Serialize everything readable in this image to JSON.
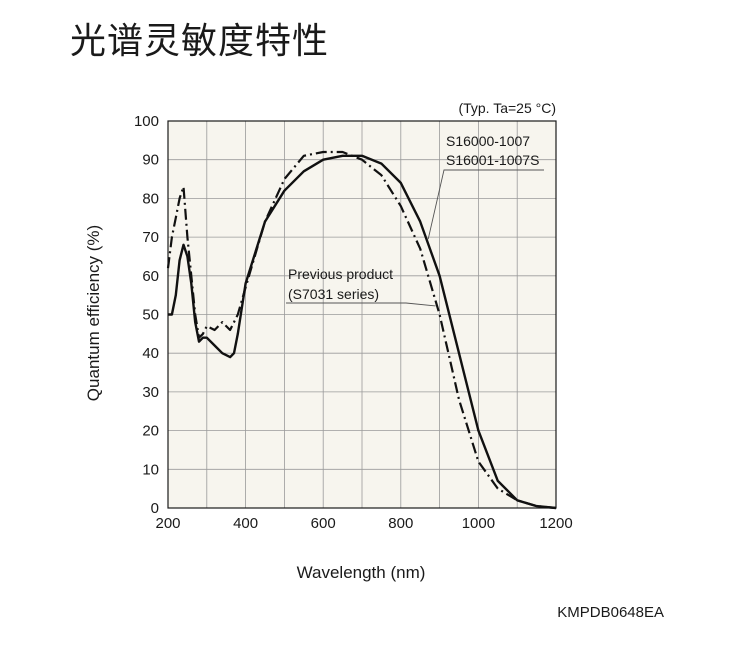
{
  "page_title": "光谱灵敏度特性",
  "doc_code": "KMPDB0648EA",
  "chart_data": {
    "type": "line",
    "title": "",
    "condition_note": "(Typ. Ta=25 °C)",
    "xlabel": "Wavelength (nm)",
    "ylabel": "Quantum efficiency (%)",
    "xlim": [
      200,
      1200
    ],
    "ylim": [
      0,
      100
    ],
    "xticks": [
      200,
      400,
      600,
      800,
      1000,
      1200
    ],
    "yticks": [
      0,
      10,
      20,
      30,
      40,
      50,
      60,
      70,
      80,
      90,
      100
    ],
    "grid": true,
    "plot_background": "#f7f5ee",
    "series": [
      {
        "name": "S16000-1007\nS16001-1007S",
        "style": "solid",
        "x": [
          200,
          210,
          220,
          230,
          240,
          250,
          260,
          270,
          280,
          290,
          300,
          320,
          340,
          360,
          370,
          380,
          400,
          450,
          500,
          550,
          600,
          650,
          700,
          750,
          800,
          850,
          900,
          950,
          1000,
          1050,
          1100,
          1150,
          1200
        ],
        "y": [
          50,
          50,
          55,
          64,
          68,
          65,
          58,
          48,
          43,
          44,
          44,
          42,
          40,
          39,
          40,
          45,
          58,
          74,
          82,
          87,
          90,
          91,
          91,
          89,
          84,
          74,
          60,
          40,
          20,
          7,
          2,
          0.5,
          0
        ]
      },
      {
        "name": "Previous product\n(S7031 series)",
        "style": "dash-dot",
        "x": [
          200,
          210,
          220,
          230,
          240,
          250,
          260,
          270,
          280,
          290,
          300,
          320,
          340,
          360,
          380,
          400,
          450,
          500,
          550,
          600,
          650,
          700,
          750,
          800,
          850,
          900,
          950,
          1000,
          1050,
          1100,
          1150,
          1200
        ],
        "y": [
          62,
          70,
          75,
          80,
          83,
          70,
          60,
          50,
          44,
          45,
          47,
          46,
          48,
          46,
          50,
          57,
          74,
          85,
          91,
          92,
          92,
          90,
          86,
          78,
          67,
          50,
          28,
          12,
          5,
          2,
          0.5,
          0
        ]
      }
    ],
    "annotations": [
      {
        "text_lines": [
          "S16000-1007",
          "S16001-1007S"
        ],
        "target_series": 0
      },
      {
        "text_lines": [
          "Previous product",
          "(S7031 series)"
        ],
        "target_series": 1
      }
    ]
  }
}
